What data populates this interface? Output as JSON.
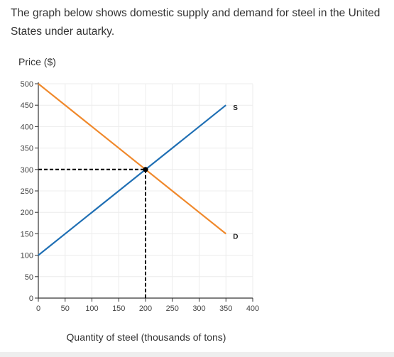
{
  "question": {
    "text": "The graph below shows domestic supply and demand for steel in the United States under autarky."
  },
  "chart_data": {
    "type": "line",
    "title": "",
    "ylabel": "Price ($)",
    "xlabel": "Quantity of steel (thousands of tons)",
    "xlim": [
      0,
      400
    ],
    "ylim": [
      0,
      500
    ],
    "x_ticks": [
      0,
      50,
      100,
      150,
      200,
      250,
      300,
      350,
      400
    ],
    "y_ticks": [
      0,
      50,
      100,
      150,
      200,
      250,
      300,
      350,
      400,
      450,
      500
    ],
    "grid": true,
    "series": [
      {
        "name": "S",
        "color": "#1f6fb4",
        "points": [
          [
            0,
            100
          ],
          [
            350,
            450
          ]
        ]
      },
      {
        "name": "D",
        "color": "#f0892c",
        "points": [
          [
            0,
            500
          ],
          [
            350,
            150
          ]
        ]
      }
    ],
    "equilibrium": {
      "x": 200,
      "y": 300,
      "guide_color": "#000000"
    }
  }
}
